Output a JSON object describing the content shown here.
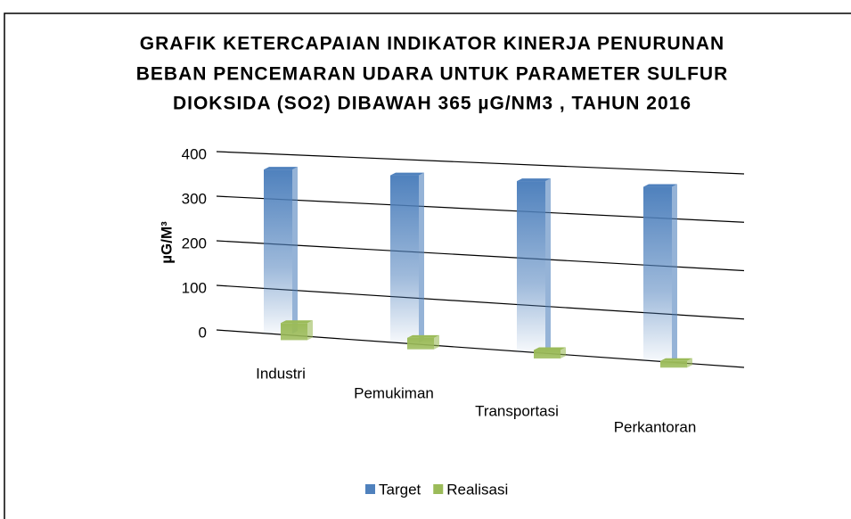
{
  "chart_data": {
    "type": "bar3d",
    "title": [
      "GRAFIK KETERCAPAIAN INDIKATOR KINERJA PENURUNAN",
      "BEBAN PENCEMARAN UDARA UNTUK PARAMETER SULFUR",
      "DIOKSIDA (SO2) DIBAWAH 365 µG/NM3 , TAHUN 2016"
    ],
    "y_label": "µG/M³",
    "categories": [
      "Industri",
      "Pemukiman",
      "Transportasi",
      "Perkantoran"
    ],
    "series": [
      {
        "name": "Target",
        "color": "#4f81bd",
        "values": [
          365,
          365,
          365,
          365
        ]
      },
      {
        "name": "Realisasi",
        "color": "#9bbb59",
        "values": [
          38,
          25,
          18,
          14
        ]
      }
    ],
    "ylim": [
      0,
      400
    ],
    "yticks": [
      0,
      100,
      200,
      300,
      400
    ],
    "grid": true,
    "legend": "bottom"
  }
}
